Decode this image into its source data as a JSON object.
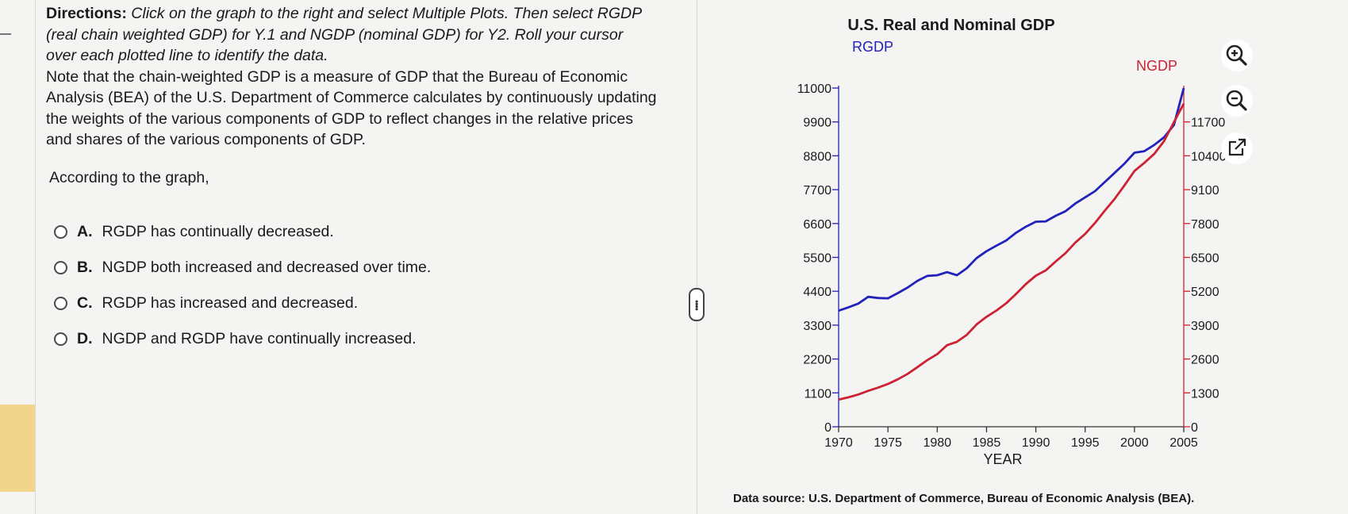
{
  "question": {
    "directions_label": "Directions:",
    "directions_italic": "Click on the graph to the right and select Multiple Plots. Then select RGDP (real chain weighted GDP) for Y.1 and NGDP (nominal GDP) for Y2. Roll your cursor over each plotted line to identify the data.",
    "note": "Note that the chain-weighted GDP is a measure of GDP that the Bureau of Economic Analysis (BEA) of the U.S. Department of Commerce calculates by continuously updating the weights of the various components of GDP to reflect changes in the relative prices and shares of the various components of GDP.",
    "prompt": "According to the graph,",
    "options": [
      {
        "letter": "A.",
        "text": "RGDP has continually decreased."
      },
      {
        "letter": "B.",
        "text": "NGDP both increased and decreased over time."
      },
      {
        "letter": "C.",
        "text": "RGDP has increased and decreased."
      },
      {
        "letter": "D.",
        "text": "NGDP and RGDP have continually increased."
      }
    ]
  },
  "toolbar": {
    "zoom_in_icon": "zoom-in-icon",
    "zoom_out_icon": "zoom-out-icon",
    "popout_icon": "external-link-icon"
  },
  "source_text": "Data source: U.S. Department of Commerce, Bureau of Economic Analysis (BEA).",
  "colors": {
    "rgdp": "#2222bb",
    "ngdp": "#cc2233",
    "text": "#1a1a1a"
  },
  "chart_data": {
    "type": "line",
    "title": "U.S. Real and Nominal GDP",
    "xlabel": "YEAR",
    "y1label": "RGDP",
    "y2label": "NGDP",
    "xlim": [
      1970,
      2005
    ],
    "x_ticks": [
      "1970",
      "1975",
      "1980",
      "1985",
      "1990",
      "1995",
      "2000",
      "2005"
    ],
    "y1lim": [
      0,
      11000
    ],
    "y1_ticks": [
      "0",
      "1100",
      "2200",
      "3300",
      "4400",
      "5500",
      "6600",
      "7700",
      "8800",
      "9900",
      "11000"
    ],
    "y2lim": [
      0,
      13000
    ],
    "y2_ticks": [
      "0",
      "1300",
      "2600",
      "3900",
      "5200",
      "6500",
      "7800",
      "9100",
      "10400",
      "11700"
    ],
    "series": [
      {
        "name": "RGDP",
        "axis": "y1",
        "x": [
          1970,
          1971,
          1972,
          1973,
          1974,
          1975,
          1976,
          1977,
          1978,
          1979,
          1980,
          1981,
          1982,
          1983,
          1984,
          1985,
          1986,
          1987,
          1988,
          1989,
          1990,
          1991,
          1992,
          1993,
          1994,
          1995,
          1996,
          1997,
          1998,
          1999,
          2000,
          2001,
          2002,
          2003,
          2004,
          2005
        ],
        "values": [
          3770,
          3880,
          4000,
          4220,
          4180,
          4170,
          4340,
          4520,
          4740,
          4900,
          4920,
          5020,
          4920,
          5150,
          5480,
          5700,
          5880,
          6050,
          6300,
          6500,
          6660,
          6670,
          6850,
          7000,
          7250,
          7450,
          7650,
          7950,
          8250,
          8550,
          8900,
          8950,
          9150,
          9400,
          9800,
          11000
        ]
      },
      {
        "name": "NGDP",
        "axis": "y2",
        "x": [
          1970,
          1971,
          1972,
          1973,
          1974,
          1975,
          1976,
          1977,
          1978,
          1979,
          1980,
          1981,
          1982,
          1983,
          1984,
          1985,
          1986,
          1987,
          1988,
          1989,
          1990,
          1991,
          1992,
          1993,
          1994,
          1995,
          1996,
          1997,
          1998,
          1999,
          2000,
          2001,
          2002,
          2003,
          2004,
          2005
        ],
        "values": [
          1040,
          1130,
          1240,
          1380,
          1500,
          1640,
          1820,
          2030,
          2290,
          2560,
          2790,
          3130,
          3260,
          3530,
          3930,
          4220,
          4460,
          4740,
          5100,
          5480,
          5800,
          6000,
          6340,
          6660,
          7070,
          7400,
          7820,
          8300,
          8750,
          9270,
          9820,
          10130,
          10470,
          10960,
          11690,
          12400
        ]
      }
    ]
  }
}
